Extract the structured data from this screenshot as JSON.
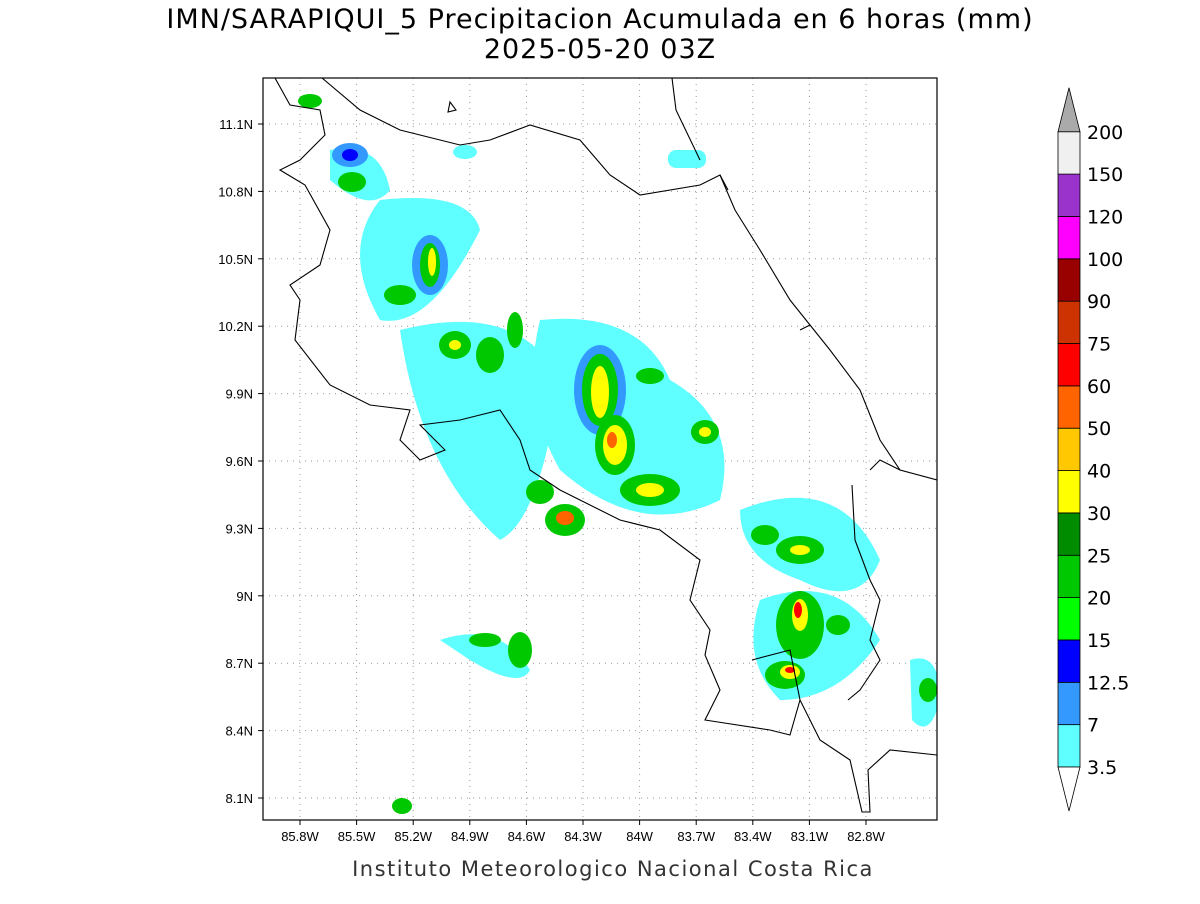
{
  "title": "IMN/SARAPIQUI_5 Precipitacion Acumulada en 6 horas (mm)",
  "subtitle": "2025-05-20 03Z",
  "map": {
    "lat_ticks": [
      "11.1N",
      "10.8N",
      "10.5N",
      "10.2N",
      "9.9N",
      "9.6N",
      "9.3N",
      "9N",
      "8.7N",
      "8.4N",
      "8.1N"
    ],
    "lon_ticks": [
      "85.8W",
      "85.5W",
      "85.2W",
      "84.9W",
      "84.6W",
      "84.3W",
      "84W",
      "83.7W",
      "83.4W",
      "83.1W",
      "82.8W"
    ]
  },
  "colorbar": {
    "levels": [
      "3.5",
      "7",
      "12.5",
      "15",
      "20",
      "25",
      "30",
      "40",
      "50",
      "60",
      "75",
      "90",
      "100",
      "120",
      "150",
      "200"
    ],
    "colors": [
      "#5fffff",
      "#3399ff",
      "#0000ff",
      "#00ff00",
      "#00c800",
      "#008c00",
      "#ffff00",
      "#ffc800",
      "#ff6400",
      "#ff0000",
      "#cc3300",
      "#990000",
      "#ff00ff",
      "#9933cc",
      "#f0f0f0"
    ],
    "over_color": "#aaaaaa",
    "under_color": "#ffffff"
  },
  "footer": "Instituto Meteorologico Nacional Costa Rica"
}
